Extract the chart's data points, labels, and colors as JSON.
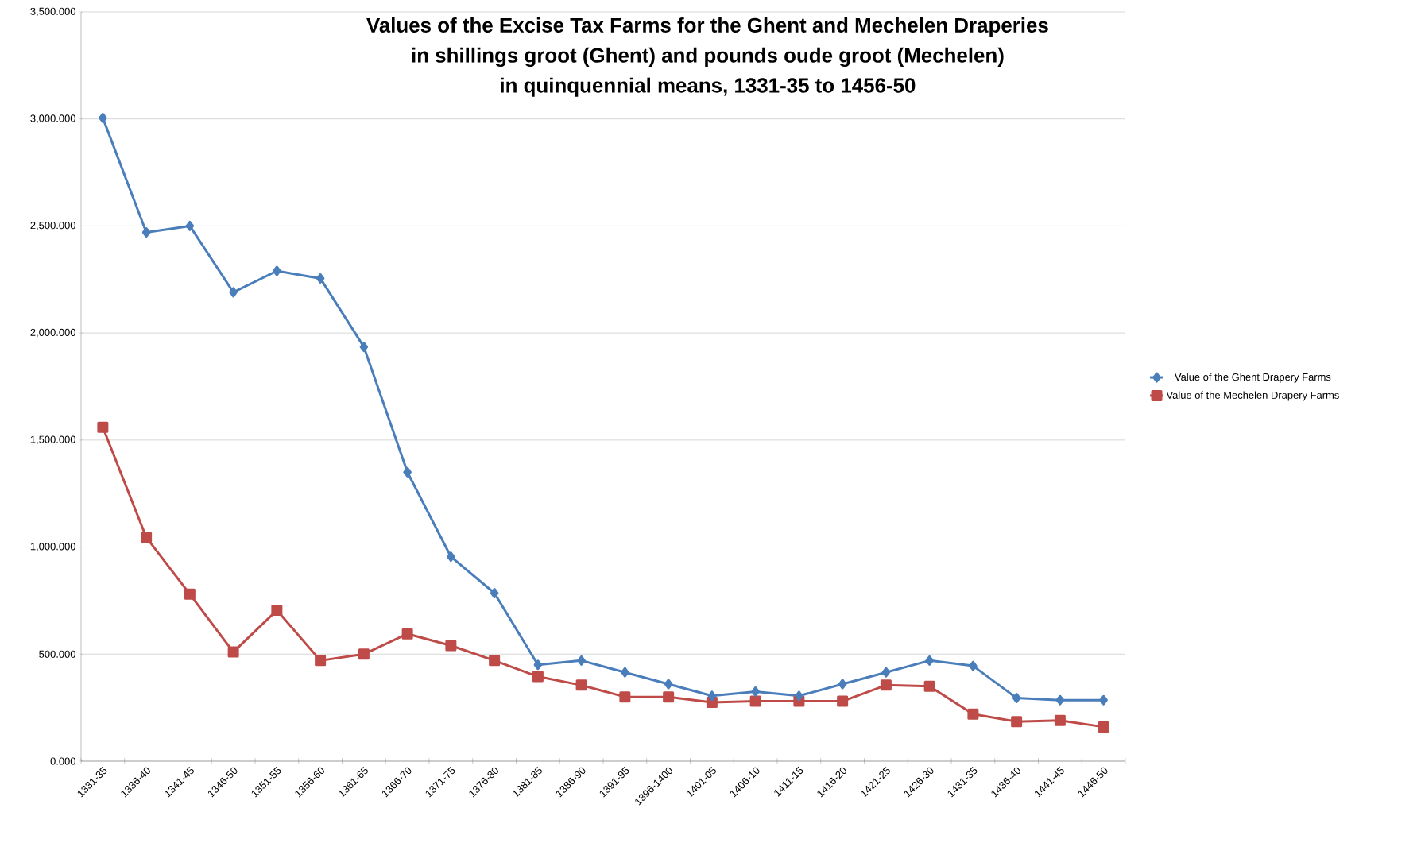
{
  "chart_data": {
    "type": "line",
    "title": "Values of the Excise Tax Farms for the Ghent and Mechelen Draperies\nin shillings groot (Ghent) and pounds oude groot (Mechelen)\nin quinquennial means, 1331-35  to 1456-50",
    "categories": [
      "1331-35",
      "1336-40",
      "1341-45",
      "1346-50",
      "1351-55",
      "1356-60",
      "1361-65",
      "1366-70",
      "1371-75",
      "1376-80",
      "1381-85",
      "1386-90",
      "1391-95",
      "1396-1400",
      "1401-05",
      "1406-10",
      "1411-15",
      "1416-20",
      "1421-25",
      "1426-30",
      "1431-35",
      "1436-40",
      "1441-45",
      "1446-50"
    ],
    "series": [
      {
        "name": "Value of the Ghent Drapery Farms",
        "color": "#4a7ebb",
        "marker": "diamond",
        "values": [
          3005,
          2470,
          2500,
          2190,
          2290,
          2255,
          1935,
          1350,
          955,
          785,
          450,
          470,
          415,
          360,
          305,
          325,
          305,
          360,
          415,
          470,
          445,
          295,
          285,
          285
        ]
      },
      {
        "name": "Value of the Mechelen Drapery Farms",
        "color": "#be4b48",
        "marker": "square",
        "values": [
          1560,
          1045,
          780,
          510,
          705,
          470,
          500,
          595,
          540,
          470,
          395,
          355,
          300,
          300,
          275,
          280,
          280,
          280,
          355,
          350,
          220,
          185,
          190,
          160
        ]
      }
    ],
    "ylim": [
      0,
      3500
    ],
    "yticks": [
      {
        "value": 0,
        "label": "0.000"
      },
      {
        "value": 500,
        "label": "500.000"
      },
      {
        "value": 1000,
        "label": "1,000.000"
      },
      {
        "value": 1500,
        "label": "1,500.000"
      },
      {
        "value": 2000,
        "label": "2,000.000"
      },
      {
        "value": 2500,
        "label": "2,500.000"
      },
      {
        "value": 3000,
        "label": "3,000.000"
      },
      {
        "value": 3500,
        "label": "3,500.000"
      }
    ],
    "grid": "y",
    "legend": "right",
    "line_style": "solid"
  }
}
